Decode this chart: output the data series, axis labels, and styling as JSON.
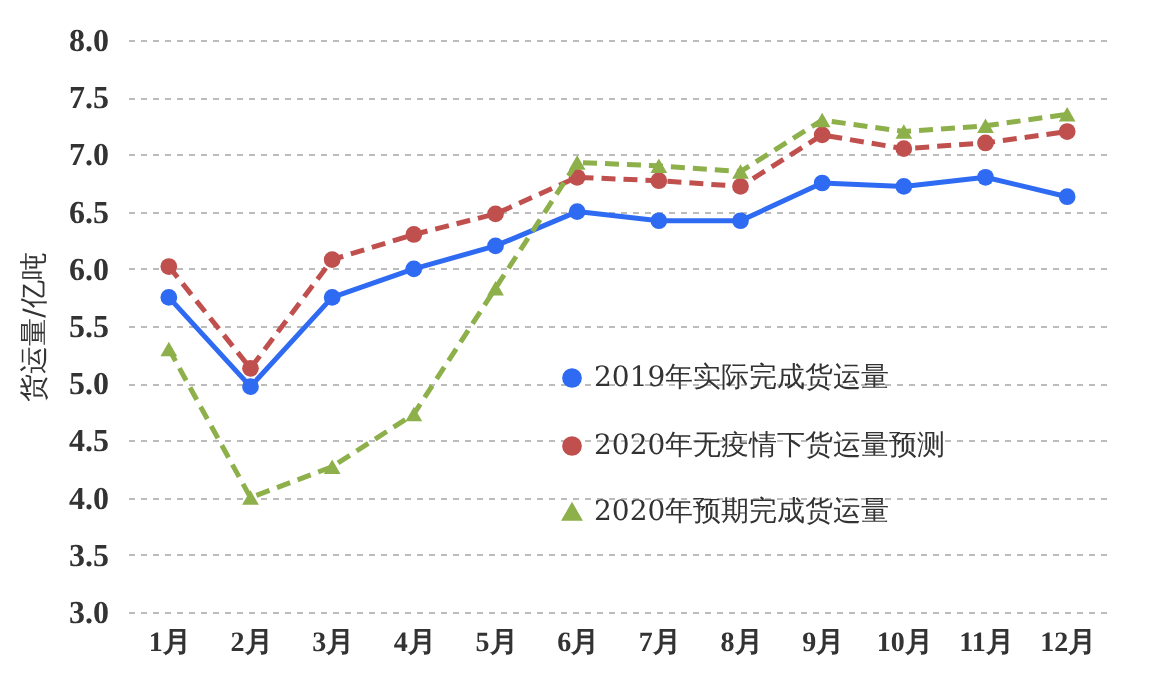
{
  "chart_data": {
    "type": "line",
    "ylabel": "货运量/亿吨",
    "categories": [
      "1月",
      "2月",
      "3月",
      "4月",
      "5月",
      "6月",
      "7月",
      "8月",
      "9月",
      "10月",
      "11月",
      "12月"
    ],
    "series": [
      {
        "name": "2019年实际完成货运量",
        "color": "#2f6bf2",
        "marker": "circle",
        "line_style": "solid",
        "values": [
          5.75,
          4.97,
          5.75,
          6.0,
          6.2,
          6.5,
          6.42,
          6.42,
          6.75,
          6.72,
          6.8,
          6.63
        ]
      },
      {
        "name": "2020年无疫情下货运量预测",
        "color": "#c0504d",
        "marker": "circle",
        "line_style": "dashed",
        "values": [
          6.02,
          5.13,
          6.08,
          6.3,
          6.48,
          6.8,
          6.77,
          6.72,
          7.17,
          7.05,
          7.1,
          7.2
        ]
      },
      {
        "name": "2020年预期完成货运量",
        "color": "#8db04a",
        "marker": "triangle",
        "line_style": "dashed",
        "values": [
          5.3,
          4.0,
          4.27,
          4.73,
          5.83,
          6.93,
          6.9,
          6.85,
          7.3,
          7.2,
          7.25,
          7.35
        ]
      }
    ],
    "ylim": [
      3.0,
      8.0
    ],
    "yticks": [
      {
        "value": 3,
        "label": "3.0"
      },
      {
        "value": 3.5,
        "label": "3.5"
      },
      {
        "value": 4,
        "label": "4.0"
      },
      {
        "value": 4.5,
        "label": "4.5"
      },
      {
        "value": 5,
        "label": "5.0"
      },
      {
        "value": 5.5,
        "label": "5.5"
      },
      {
        "value": 6,
        "label": "6.0"
      },
      {
        "value": 6.5,
        "label": "6.5"
      },
      {
        "value": 7,
        "label": "7.0"
      },
      {
        "value": 7.5,
        "label": "7.5"
      },
      {
        "value": 8,
        "label": "8.0"
      }
    ],
    "grid": "y",
    "legend": "right"
  }
}
